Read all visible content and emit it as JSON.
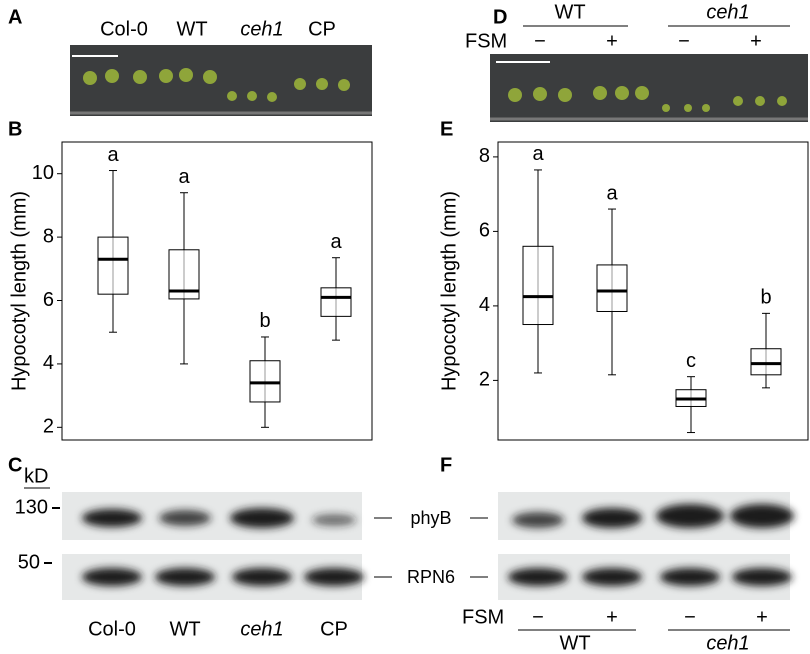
{
  "panels": {
    "a": {
      "label": "A",
      "lanes": [
        "Col-0",
        "WT",
        "ceh1",
        "CP"
      ]
    },
    "d": {
      "label": "D",
      "treatment": "FSM",
      "groups": [
        "WT",
        "ceh1"
      ],
      "signs": [
        "−",
        "+",
        "−",
        "+"
      ]
    },
    "c": {
      "label": "C",
      "unit": "kD",
      "markers": [
        "130",
        "50"
      ],
      "lanes": [
        "Col-0",
        "WT",
        "ceh1",
        "CP"
      ]
    },
    "blots": [
      "phyB",
      "RPN6"
    ],
    "f": {
      "label": "F",
      "treatment": "FSM",
      "signs": [
        "−",
        "+",
        "−",
        "+"
      ],
      "groups": [
        "WT",
        "ceh1"
      ]
    }
  },
  "chart_data": [
    {
      "type": "box",
      "label": "B",
      "y_label": "Hypocotyl length (mm)",
      "ylim": [
        1.6,
        11.0
      ],
      "yticks": [
        2,
        4,
        6,
        8,
        10
      ],
      "boxes": [
        {
          "low": 5.0,
          "q1": 6.2,
          "median": 7.3,
          "q3": 8.0,
          "high": 10.1
        },
        {
          "low": 4.0,
          "q1": 6.05,
          "median": 6.3,
          "q3": 7.6,
          "high": 9.4
        },
        {
          "low": 2.0,
          "q1": 2.8,
          "median": 3.4,
          "q3": 4.1,
          "high": 4.85
        },
        {
          "low": 4.75,
          "q1": 5.5,
          "median": 6.1,
          "q3": 6.4,
          "high": 7.35
        }
      ],
      "letters": [
        "a",
        "a",
        "b",
        "a"
      ]
    },
    {
      "type": "box",
      "label": "E",
      "y_label": "Hypocotyl length (mm)",
      "ylim": [
        0.4,
        8.4
      ],
      "yticks": [
        2,
        4,
        6,
        8
      ],
      "boxes": [
        {
          "low": 2.2,
          "q1": 3.5,
          "median": 4.25,
          "q3": 5.6,
          "high": 7.65
        },
        {
          "low": 2.15,
          "q1": 3.85,
          "median": 4.4,
          "q3": 5.1,
          "high": 6.6
        },
        {
          "low": 0.6,
          "q1": 1.3,
          "median": 1.5,
          "q3": 1.75,
          "high": 2.1
        },
        {
          "low": 1.8,
          "q1": 2.15,
          "median": 2.45,
          "q3": 2.85,
          "high": 3.8
        }
      ],
      "letters": [
        "a",
        "a",
        "c",
        "b"
      ]
    }
  ]
}
